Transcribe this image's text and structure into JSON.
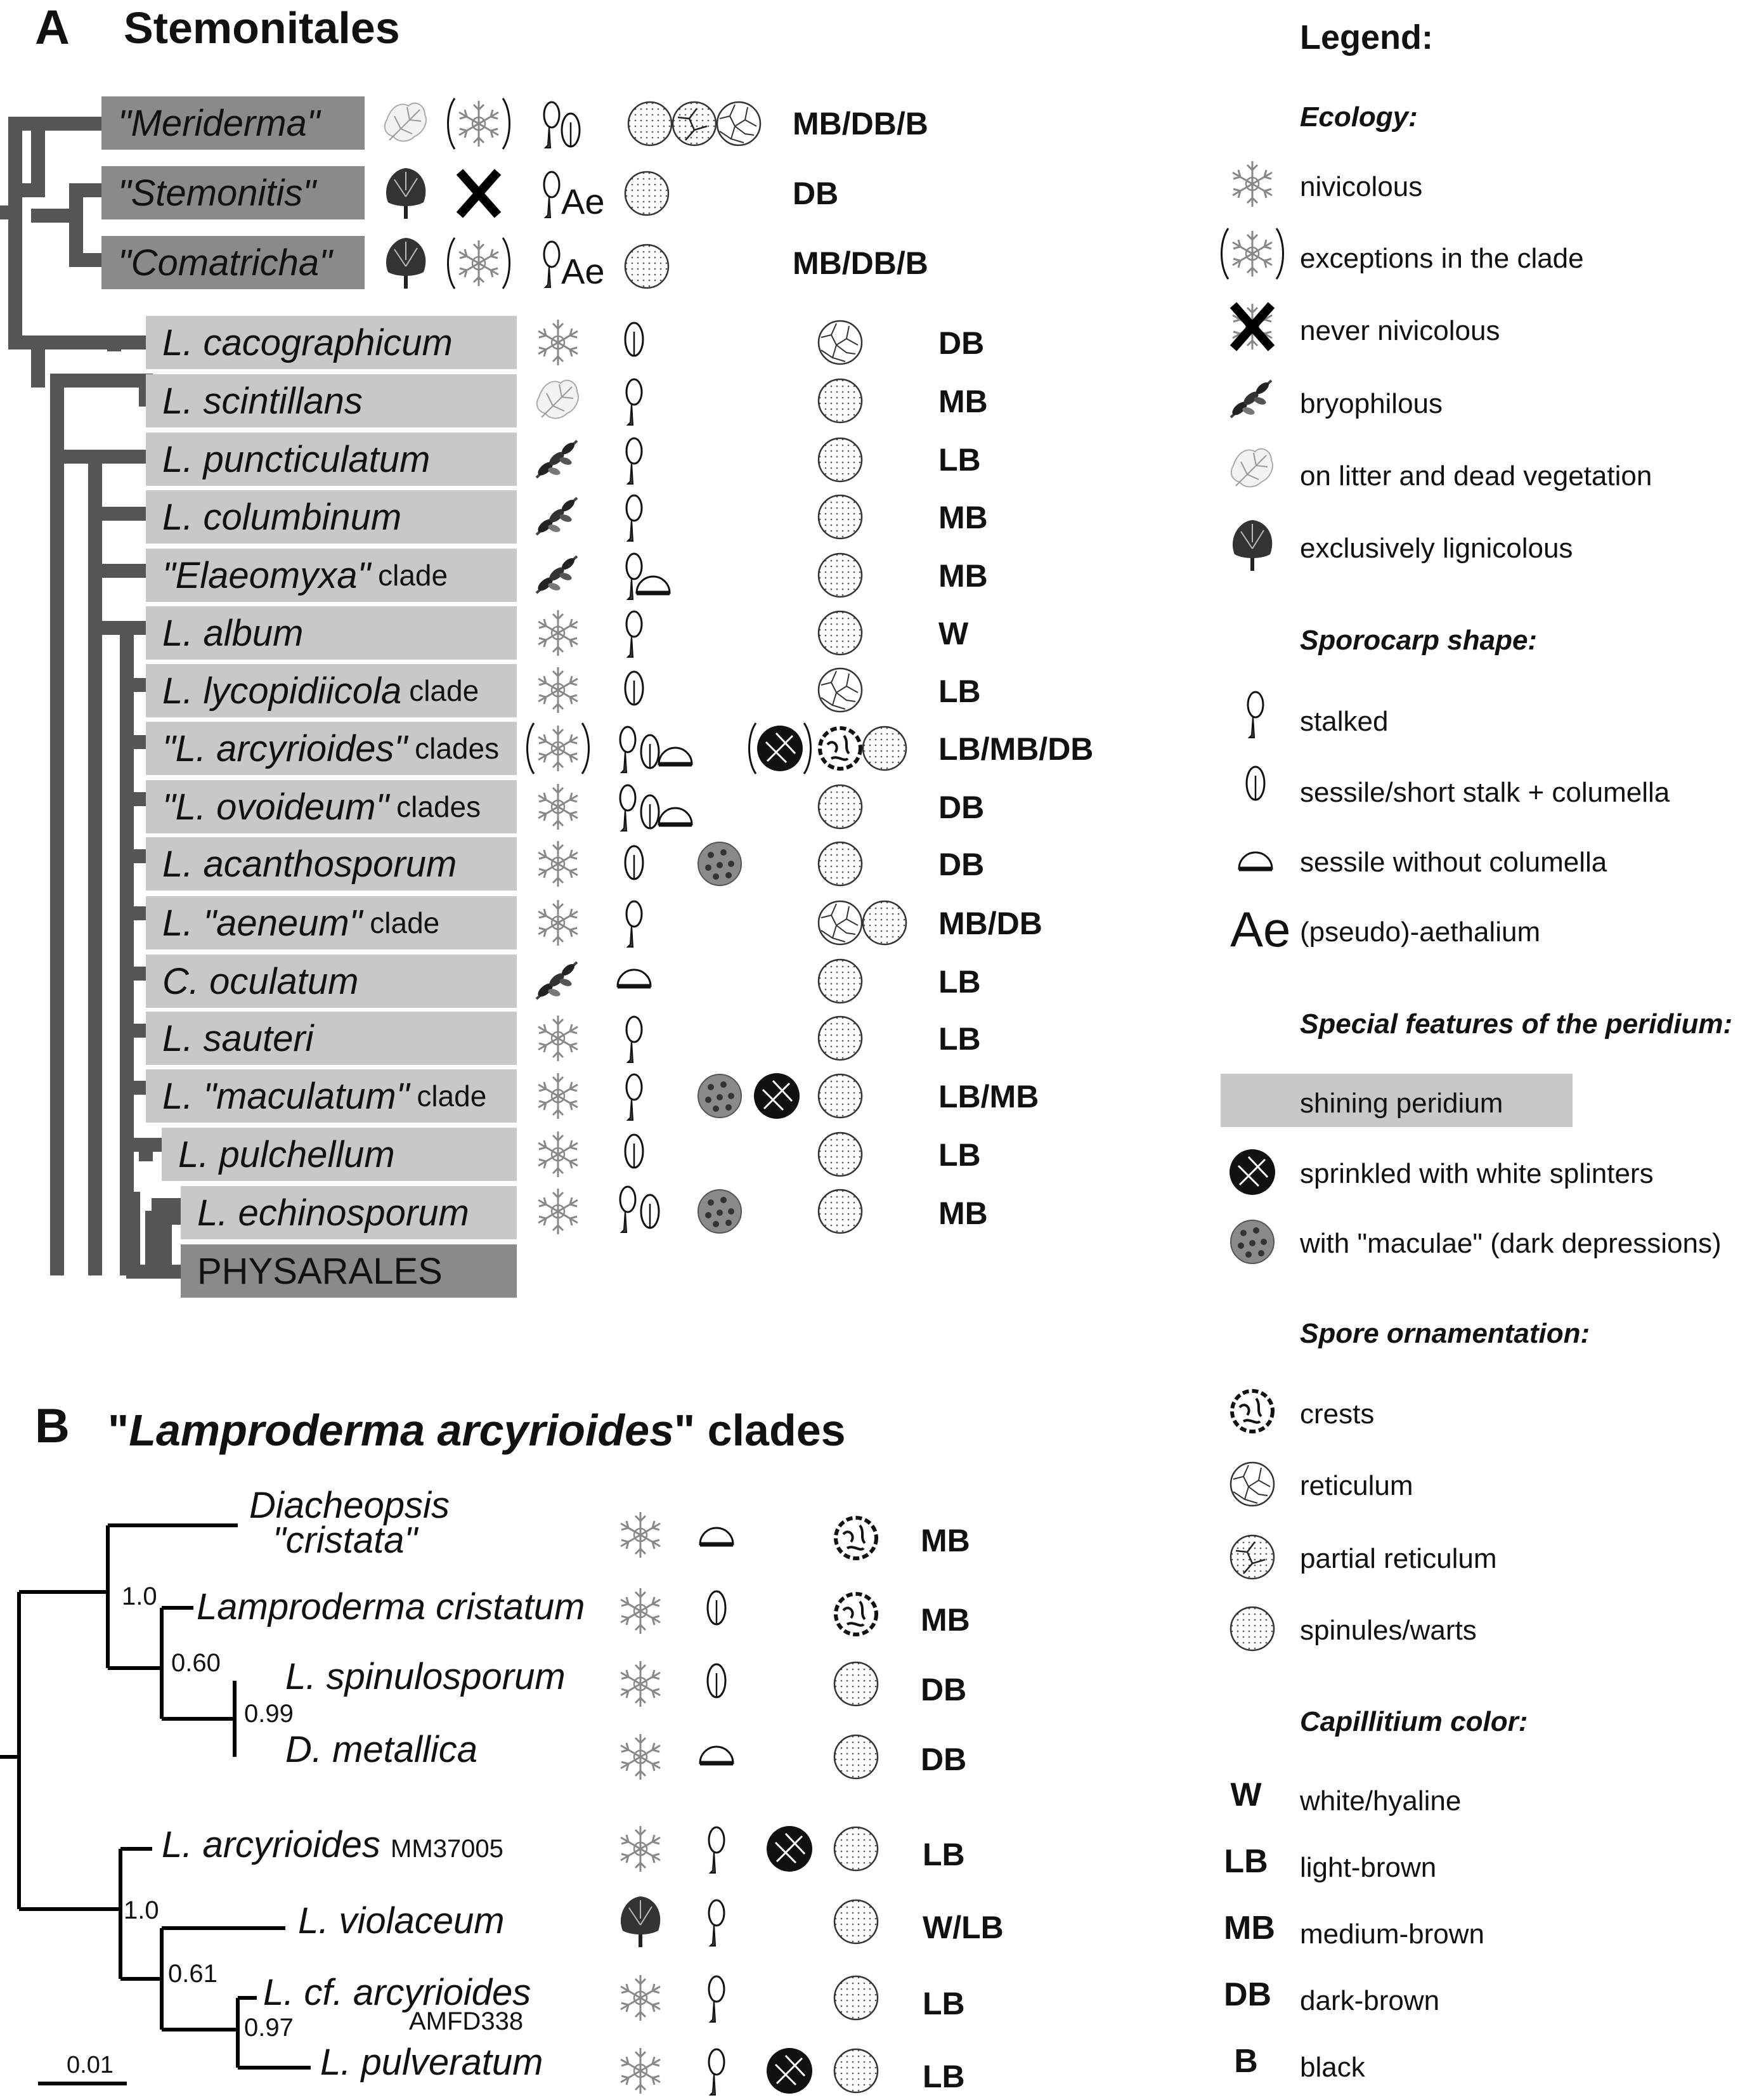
{
  "panel_a": {
    "letter": "A",
    "title": "Stemonitales"
  },
  "panel_b": {
    "letter": "B",
    "title_q1": "\"",
    "title_italic": "Lamproderma arcyrioides",
    "title_q2": "\"",
    "title_suffix": "clades"
  },
  "rows_a": [
    {
      "name": "\"Meriderma\"",
      "suffix": "",
      "eco": "litter+nivi-exc",
      "spo": [
        "stalked",
        "sessile"
      ],
      "spores": [
        "spinules",
        "partial",
        "reticulum"
      ],
      "cap": "MB/DB/B"
    },
    {
      "name": "\"Stemonitis\"",
      "suffix": "",
      "eco": "lig+never",
      "spo": [
        "stalked",
        "Ae"
      ],
      "spores": [
        "spinules"
      ],
      "cap": "DB"
    },
    {
      "name": "\"Comatricha\"",
      "suffix": "",
      "eco": "lig+nivi-exc",
      "spo": [
        "stalked",
        "Ae"
      ],
      "spores": [
        "spinules"
      ],
      "cap": "MB/DB/B"
    },
    {
      "name": "L. cacographicum",
      "suffix": "",
      "cap": "DB"
    },
    {
      "name": "L. scintillans",
      "suffix": "",
      "cap": "MB"
    },
    {
      "name": "L. puncticulatum",
      "suffix": "",
      "cap": "LB"
    },
    {
      "name": "L. columbinum",
      "suffix": "",
      "cap": "MB"
    },
    {
      "name": "\"Elaeomyxa\"",
      "suffix": "clade",
      "cap": "MB"
    },
    {
      "name": "L. album",
      "suffix": "",
      "cap": "W"
    },
    {
      "name": "L. lycopidiicola",
      "suffix": "clade",
      "cap": "LB"
    },
    {
      "name": "\"L. arcyrioides\"",
      "suffix": "clades",
      "cap": "LB/MB/DB"
    },
    {
      "name": "\"L. ovoideum\"",
      "suffix": "clades",
      "cap": "DB"
    },
    {
      "name": "L. acanthosporum",
      "suffix": "",
      "cap": "DB"
    },
    {
      "name": "L. \"aeneum\"",
      "suffix": "clade",
      "cap": "MB/DB"
    },
    {
      "name": "C. oculatum",
      "suffix": "",
      "cap": "LB"
    },
    {
      "name": "L. sauteri",
      "suffix": "",
      "cap": "LB"
    },
    {
      "name": "L. \"maculatum\"",
      "suffix": "clade",
      "cap": "LB/MB"
    },
    {
      "name": "L. pulchellum",
      "suffix": "",
      "cap": "LB"
    },
    {
      "name": "L. echinosporum",
      "suffix": "",
      "cap": "MB"
    },
    {
      "name": "PHYSARALES",
      "suffix": "",
      "cap": ""
    }
  ],
  "rows_b": [
    {
      "name_l1": "Diacheopsis",
      "name_l2": "\"cristata\"",
      "cap": "MB"
    },
    {
      "name": "Lamproderma cristatum",
      "cap": "MB"
    },
    {
      "name": "L. spinulosporum",
      "cap": "DB"
    },
    {
      "name": "D. metallica",
      "cap": "DB"
    },
    {
      "name": "L. arcyrioides",
      "suffix": "MM37005",
      "cap": "LB"
    },
    {
      "name": "L. violaceum",
      "cap": "W/LB"
    },
    {
      "name": "L. cf. arcyrioides",
      "suffix": "AMFD338",
      "cap": "LB"
    },
    {
      "name": "L. pulveratum",
      "cap": "LB"
    }
  ],
  "support_b": [
    "1.0",
    "0.60",
    "0.99",
    "1.0",
    "0.61",
    "0.97"
  ],
  "scale_b": "0.01",
  "legend": {
    "title": "Legend:",
    "ecology_hdr": "Ecology:",
    "ecology": [
      "nivicolous",
      "exceptions in the clade",
      "never nivicolous",
      "bryophilous",
      "on litter and dead vegetation",
      "exclusively lignicolous"
    ],
    "shape_hdr": "Sporocarp shape:",
    "shape": [
      "stalked",
      "sessile/short stalk + columella",
      "sessile without columella",
      "(pseudo)-aethalium"
    ],
    "ae_symbol": "Ae",
    "peridium_hdr": "Special features of the peridium:",
    "peridium": [
      "shining peridium",
      "sprinkled with white splinters",
      "with \"maculae\" (dark depressions)"
    ],
    "spore_hdr": "Spore ornamentation:",
    "spore": [
      "crests",
      "reticulum",
      "partial reticulum",
      "spinules/warts"
    ],
    "cap_hdr": "Capillitium color:",
    "cap_codes": [
      "W",
      "LB",
      "MB",
      "DB",
      "B"
    ],
    "cap_names": [
      "white/hyaline",
      "light-brown",
      "medium-brown",
      "dark-brown",
      "black"
    ]
  }
}
